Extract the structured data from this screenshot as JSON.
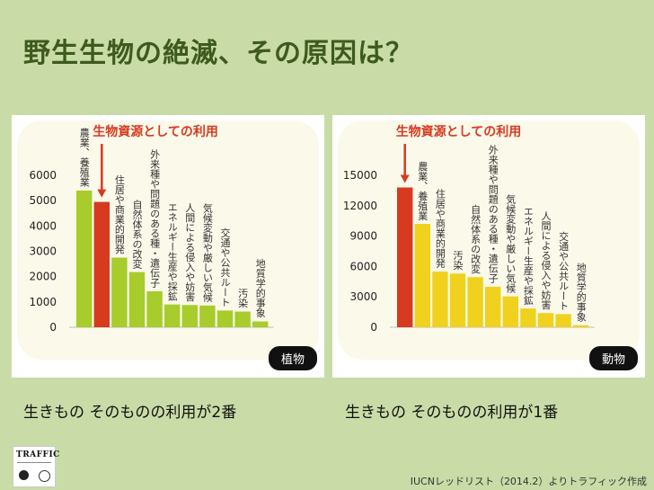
{
  "title": "野生生物の絶滅、その原因は？",
  "captions": {
    "left": "生きもの そのものの利用が2番",
    "right": "生きもの そのものの利用が1番"
  },
  "source": "IUCNレッドリスト（2014.2）よりトラフィック作成",
  "logo": {
    "name": "TRAFFIC"
  },
  "colors": {
    "background": "#c9dca7",
    "title": "#3e5a1e",
    "green_bar": "#a8cc2c",
    "red_bar": "#d63a1f",
    "yellow_bar": "#f0d21e"
  },
  "chart_data": [
    {
      "type": "bar",
      "badge": "植物",
      "annotation": "生物資源としての利用",
      "ylim": [
        0,
        6000
      ],
      "yticks": [
        0,
        1000,
        2000,
        3000,
        4000,
        5000,
        6000
      ],
      "categories": [
        "農業、養殖業",
        "生物資源としての利用",
        "住居や商業的開発",
        "自然体系の改変",
        "外来種や問題のある種・遺伝子",
        "エネルギー生産や採鉱",
        "人間による侵入や妨害",
        "気候変動や厳しい気候",
        "交通や公共ルート",
        "汚染",
        "地質学的事象"
      ],
      "values": [
        5400,
        4950,
        2750,
        2180,
        1420,
        900,
        880,
        860,
        660,
        620,
        230
      ],
      "bar_colors": [
        "green",
        "red",
        "green",
        "green",
        "green",
        "green",
        "green",
        "green",
        "green",
        "green",
        "green"
      ]
    },
    {
      "type": "bar",
      "badge": "動物",
      "annotation": "生物資源としての利用",
      "ylim": [
        0,
        15000
      ],
      "yticks": [
        0,
        3000,
        6000,
        9000,
        12000,
        15000
      ],
      "categories": [
        "生物資源としての利用",
        "農業、養殖業",
        "住居や商業的開発",
        "汚染",
        "自然体系の改変",
        "外来種や問題のある種・遺伝子",
        "気候変動や厳しい気候",
        "エネルギー生産や採鉱",
        "人間による侵入や妨害",
        "交通や公共ルート",
        "地質学的事象"
      ],
      "values": [
        13800,
        10200,
        5500,
        5300,
        4950,
        4000,
        3050,
        1850,
        1400,
        1300,
        200
      ],
      "bar_colors": [
        "red",
        "yellow",
        "yellow",
        "yellow",
        "yellow",
        "yellow",
        "yellow",
        "yellow",
        "yellow",
        "yellow",
        "yellow"
      ]
    }
  ]
}
